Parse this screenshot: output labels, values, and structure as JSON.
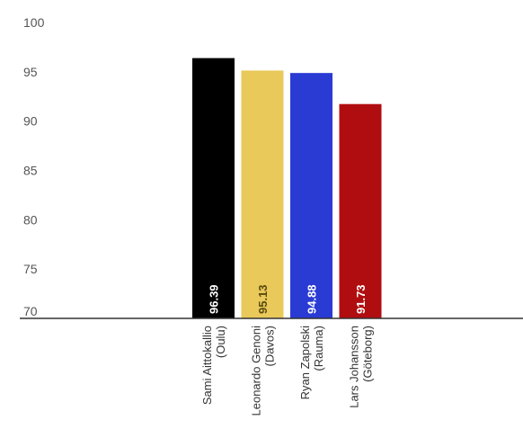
{
  "chart_data": {
    "type": "bar",
    "categories": [
      [
        "Sami Aittokallio",
        "(Oulu)"
      ],
      [
        "Leonardo Genoni",
        "(Davos)"
      ],
      [
        "Ryan Zapolski",
        "(Rauma)"
      ],
      [
        "Lars Johansson",
        "(Göteborg)"
      ]
    ],
    "values": [
      96.39,
      95.13,
      94.88,
      91.73
    ],
    "value_labels": [
      "96.39",
      "95.13",
      "94.88",
      "91.73"
    ],
    "colors": [
      "#000000",
      "#e8c95a",
      "#2a3bd4",
      "#b00d10"
    ],
    "label_colors": [
      "#ffffff",
      "#5a4a10",
      "#ffffff",
      "#ffffff"
    ],
    "ylim": [
      70,
      100
    ],
    "yticks": [
      70,
      75,
      80,
      85,
      90,
      95,
      100
    ],
    "title": "",
    "xlabel": "",
    "ylabel": "",
    "grid": false,
    "legend": "none"
  }
}
